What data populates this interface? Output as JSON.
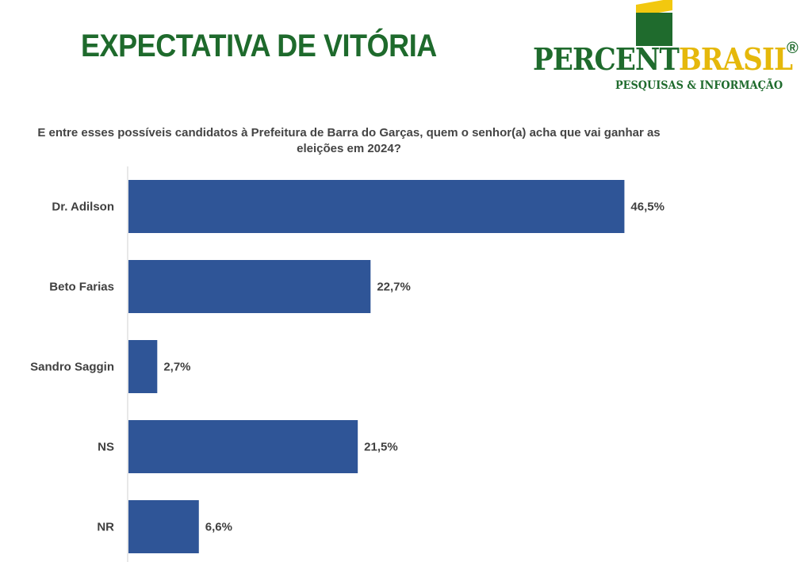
{
  "header": {
    "title": "EXPECTATIVA DE VITÓRIA"
  },
  "logo": {
    "name_part1": "PERCENT",
    "name_part2": "BRASIL",
    "registered_mark": "®",
    "tagline": "PESQUISAS & INFORMAÇÃO",
    "colors": {
      "green": "#1f6b2d",
      "yellow": "#e5b80b"
    }
  },
  "question": "E entre esses possíveis candidatos à Prefeitura de Barra do Garças, quem o senhor(a)  acha que vai ganhar as eleições em 2024?",
  "chart_data": {
    "type": "bar",
    "orientation": "horizontal",
    "categories": [
      "Dr. Adilson",
      "Beto Farias",
      "Sandro Saggin",
      "NS",
      "NR"
    ],
    "values": [
      46.5,
      22.7,
      2.7,
      21.5,
      6.6
    ],
    "value_labels": [
      "46,5%",
      "22,7%",
      "2,7%",
      "21,5%",
      "6,6%"
    ],
    "unit": "%",
    "xlim": [
      0,
      50
    ],
    "bar_color": "#2f5597",
    "grid": false,
    "legend": "none"
  }
}
